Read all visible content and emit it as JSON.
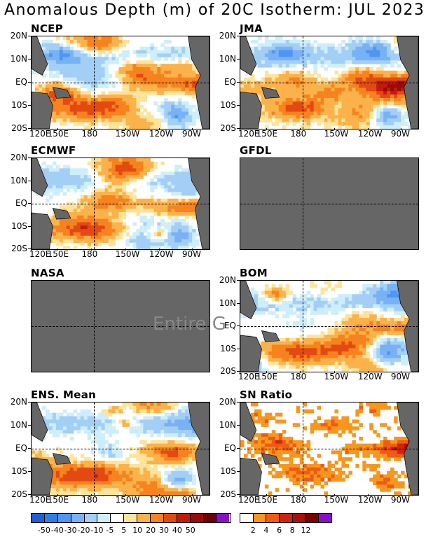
{
  "title": "Anomalous Depth (m) of 20C Isotherm: JUL 2023",
  "overlay_text": "Entire G",
  "chart_data": [
    {
      "type": "heatmap",
      "panel": "NCEP",
      "available": true,
      "ylabels": [
        "20N",
        "10N",
        "EQ",
        "10S",
        "20S"
      ],
      "xlabels": [
        "120E",
        "150E",
        "180",
        "150W",
        "120W",
        "90W"
      ]
    },
    {
      "type": "heatmap",
      "panel": "JMA",
      "available": true,
      "ylabels": [
        "20N",
        "10N",
        "EQ",
        "10S",
        "20S"
      ],
      "xlabels": [
        "120E",
        "150E",
        "180",
        "150W",
        "120W",
        "90W"
      ]
    },
    {
      "type": "heatmap",
      "panel": "ECMWF",
      "available": true,
      "ylabels": [
        "20N",
        "10N",
        "EQ",
        "10S",
        "20S"
      ],
      "xlabels": [
        "120E",
        "150E",
        "180",
        "150W",
        "120W",
        "90W"
      ]
    },
    {
      "type": "heatmap",
      "panel": "GFDL",
      "available": false
    },
    {
      "type": "heatmap",
      "panel": "NASA",
      "available": false
    },
    {
      "type": "heatmap",
      "panel": "BOM",
      "available": true,
      "ylabels": [
        "20N",
        "10N",
        "EQ",
        "10S",
        "20S"
      ],
      "xlabels": [
        "120E",
        "150E",
        "180",
        "150W",
        "120W",
        "90W"
      ]
    },
    {
      "type": "heatmap",
      "panel": "ENS. Mean",
      "available": true,
      "ylabels": [
        "20N",
        "10N",
        "EQ",
        "10S",
        "20S"
      ],
      "xlabels": [
        "120E",
        "150E",
        "180",
        "150W",
        "120W",
        "90W"
      ]
    },
    {
      "type": "heatmap",
      "panel": "SN Ratio",
      "available": true,
      "ylabels": [
        "20N",
        "10N",
        "EQ",
        "10S",
        "20S"
      ],
      "xlabels": [
        "120E",
        "150E",
        "180",
        "150W",
        "120W",
        "90W"
      ]
    }
  ],
  "legend_depth": {
    "colors": [
      "#1a5fd6",
      "#2f7ee8",
      "#4f96f0",
      "#78b2f5",
      "#a3cff7",
      "#cdeefa",
      "#ffffff",
      "#fde49a",
      "#fbb24a",
      "#f7831e",
      "#e34a12",
      "#c41a0c",
      "#9a0a08",
      "#6e0000",
      "#8a10c8"
    ],
    "labels": [
      "-50",
      "-40",
      "-30",
      "-20",
      "-10",
      "-5",
      "5",
      "10",
      "20",
      "30",
      "40",
      "50"
    ]
  },
  "legend_sn": {
    "colors": [
      "#ffffff",
      "#f7971e",
      "#ef5b12",
      "#d2230c",
      "#a81008",
      "#7a0000",
      "#8a10c8"
    ],
    "labels": [
      "2",
      "4",
      "6",
      "8",
      "12"
    ]
  },
  "colors": {
    "land": "#666666",
    "missing": "#666666",
    "frame": "#000000"
  }
}
